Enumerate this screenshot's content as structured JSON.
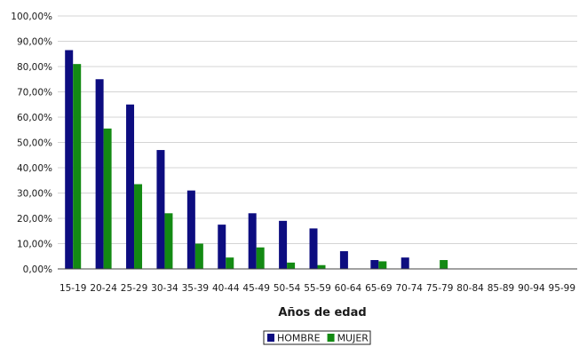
{
  "chart_data": {
    "type": "bar",
    "xlabel": "Años de edad",
    "ylabel": "",
    "ylim": [
      0,
      100
    ],
    "ytick_step": 10,
    "ytick_labels": [
      "0,00%",
      "10,00%",
      "20,00%",
      "30,00%",
      "40,00%",
      "50,00%",
      "60,00%",
      "70,00%",
      "80,00%",
      "90,00%",
      "100,00%"
    ],
    "grid": true,
    "legend_position": "bottom",
    "categories": [
      "15-19",
      "20-24",
      "25-29",
      "30-34",
      "35-39",
      "40-44",
      "45-49",
      "50-54",
      "55-59",
      "60-64",
      "65-69",
      "70-74",
      "75-79",
      "80-84",
      "85-89",
      "90-94",
      "95-99"
    ],
    "series": [
      {
        "name": "HOMBRE",
        "color": "#0d0d80",
        "values": [
          86.5,
          75,
          65,
          47,
          31,
          17.5,
          22,
          19,
          16,
          7,
          3.5,
          4.5,
          0,
          0,
          0,
          0,
          0
        ]
      },
      {
        "name": "MUJER",
        "color": "#138a13",
        "values": [
          81,
          55.5,
          33.5,
          22,
          10,
          4.5,
          8.5,
          2.5,
          1.5,
          0,
          3,
          0,
          3.5,
          0,
          0,
          0,
          0
        ]
      }
    ]
  }
}
